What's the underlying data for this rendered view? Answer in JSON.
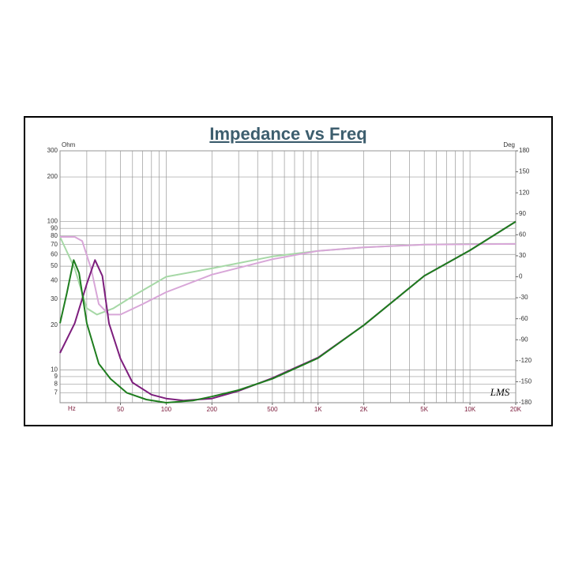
{
  "chart_data": {
    "type": "line",
    "title": "Impedance vs Freq",
    "xlabel": "Hz",
    "ylabel": "Ohm",
    "y2label": "Deg",
    "annotation": "LMS",
    "xscale": "log",
    "yscale": "log",
    "grid": true,
    "xlim": [
      20,
      20000
    ],
    "ylim": [
      6,
      300
    ],
    "y2lim": [
      -180,
      180
    ],
    "xticks": [
      50,
      100,
      200,
      500,
      {
        "value": 1000,
        "label": "1K"
      },
      {
        "value": 2000,
        "label": "2K"
      },
      {
        "value": 5000,
        "label": "5K"
      },
      {
        "value": 10000,
        "label": "10K"
      },
      {
        "value": 20000,
        "label": "20K"
      }
    ],
    "xgrid": [
      20,
      30,
      40,
      50,
      60,
      70,
      80,
      90,
      100,
      200,
      300,
      400,
      500,
      600,
      700,
      800,
      900,
      1000,
      2000,
      3000,
      4000,
      5000,
      6000,
      7000,
      8000,
      9000,
      10000,
      20000
    ],
    "yticks": [
      7,
      8,
      9,
      10,
      20,
      30,
      40,
      50,
      60,
      70,
      80,
      90,
      100,
      200,
      300
    ],
    "y2ticks": [
      -180,
      -150,
      -120,
      -90,
      -60,
      -30,
      0,
      30,
      60,
      90,
      120,
      150,
      180
    ],
    "series": [
      {
        "color": "#1e7d1e",
        "axis": "y",
        "x": [
          20,
          22.2,
          24.6,
          26.7,
          30,
          36,
          43,
          55,
          74,
          100,
          150,
          200,
          300,
          500,
          1000,
          2000,
          5000,
          10000,
          20000
        ],
        "values": [
          20.6,
          33,
          55,
          45,
          20.6,
          11,
          8.7,
          7,
          6.3,
          6,
          6.2,
          6.6,
          7.3,
          8.7,
          12,
          20,
          43,
          64,
          100
        ]
      },
      {
        "color": "#7d1e7d",
        "axis": "y",
        "x": [
          20,
          25,
          30,
          34,
          38,
          42,
          50,
          60,
          80,
          100,
          130,
          200,
          300,
          500,
          1000,
          2000,
          5000,
          10000,
          20000
        ],
        "values": [
          13,
          20.6,
          38,
          55,
          43,
          20.6,
          11.9,
          8.2,
          6.8,
          6.4,
          6.2,
          6.4,
          7.2,
          8.8,
          12.1,
          20,
          43,
          64,
          100
        ]
      },
      {
        "color": "#a6d8a6",
        "axis": "y2",
        "x": [
          20,
          25,
          30,
          35,
          45,
          60,
          100,
          200,
          500,
          1000,
          2000,
          5000,
          10000,
          20000
        ],
        "values": [
          57,
          12,
          -45,
          -54,
          -45,
          -28,
          0,
          12,
          29,
          37,
          42,
          46,
          47,
          47
        ]
      },
      {
        "color": "#d8a6d8",
        "axis": "y2",
        "x": [
          20,
          25,
          28,
          32,
          36,
          42,
          50,
          70,
          100,
          200,
          500,
          1000,
          2000,
          5000,
          20000
        ],
        "values": [
          57,
          57,
          51,
          12,
          -39,
          -54,
          -54,
          -39,
          -22,
          3,
          25,
          37,
          42,
          46,
          47
        ]
      }
    ]
  }
}
